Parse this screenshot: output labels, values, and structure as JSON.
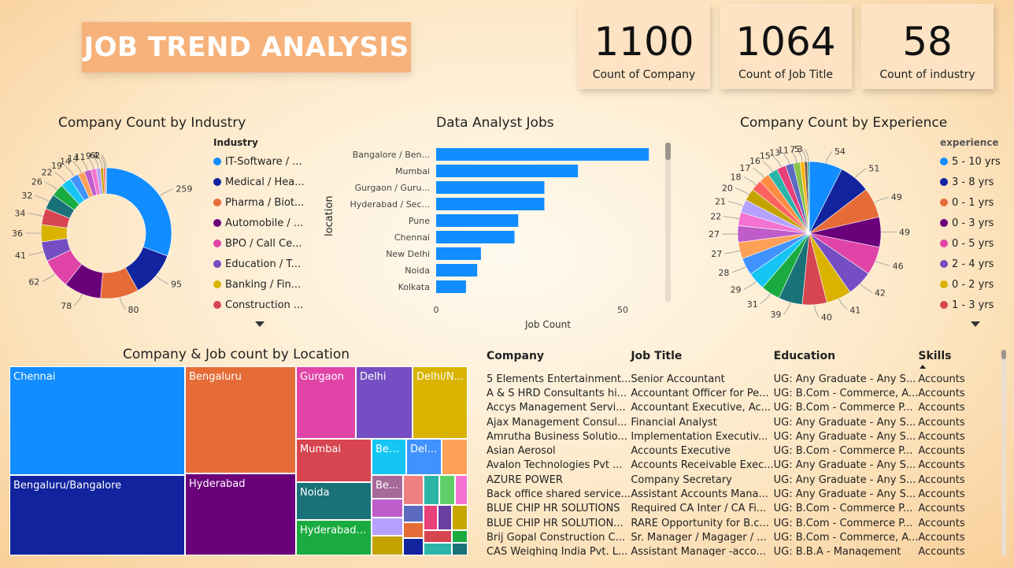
{
  "header": {
    "title": "JOB TREND ANALYSIS"
  },
  "kpis": [
    {
      "value": "1100",
      "label": "Count of Company"
    },
    {
      "value": "1064",
      "label": "Count of Job Title"
    },
    {
      "value": "58",
      "label": "Count of industry"
    }
  ],
  "industry_chart": {
    "title": "Company Count by Industry",
    "legend_title": "Industry",
    "legend": [
      {
        "label": "IT-Software / ...",
        "color": "#118DFF"
      },
      {
        "label": "Medical / Hea...",
        "color": "#12239E"
      },
      {
        "label": "Pharma / Biot...",
        "color": "#E66C37"
      },
      {
        "label": "Automobile / ...",
        "color": "#6B007B"
      },
      {
        "label": "BPO / Call Ce...",
        "color": "#E044A7"
      },
      {
        "label": "Education / T...",
        "color": "#744EC2"
      },
      {
        "label": "Banking / Fin...",
        "color": "#D9B300"
      },
      {
        "label": "Construction ...",
        "color": "#D64550"
      }
    ]
  },
  "analyst_chart": {
    "title": "Data Analyst Jobs",
    "ylabel": "location",
    "xlabel": "Job Count",
    "tick0": "0",
    "tick50": "50"
  },
  "experience_chart": {
    "title": "Company Count by Experience",
    "legend_title": "experience",
    "legend": [
      {
        "label": "5 - 10 yrs",
        "color": "#118DFF"
      },
      {
        "label": "3 - 8 yrs",
        "color": "#12239E"
      },
      {
        "label": "0 - 1 yrs",
        "color": "#E66C37"
      },
      {
        "label": "0 - 3 yrs",
        "color": "#6B007B"
      },
      {
        "label": "0 - 5 yrs",
        "color": "#E044A7"
      },
      {
        "label": "2 - 4 yrs",
        "color": "#744EC2"
      },
      {
        "label": "0 - 2 yrs",
        "color": "#D9B300"
      },
      {
        "label": "1 - 3 yrs",
        "color": "#D64550"
      }
    ]
  },
  "treemap": {
    "title": "Company & Job count by Location",
    "cells": [
      {
        "label": "Chennai",
        "color": "#118DFF"
      },
      {
        "label": "Bengaluru/Bangalore",
        "color": "#12239E"
      },
      {
        "label": "Bengaluru",
        "color": "#E66C37"
      },
      {
        "label": "Hyderabad",
        "color": "#6B007B"
      },
      {
        "label": "Gurgaon",
        "color": "#E044A7"
      },
      {
        "label": "Delhi",
        "color": "#744EC2"
      },
      {
        "label": "Delhi/N...",
        "color": "#D9B300"
      },
      {
        "label": "Mumbai",
        "color": "#D64550"
      },
      {
        "label": "Noida",
        "color": "#197278"
      },
      {
        "label": "Hyderabad /...",
        "color": "#1AAB40"
      },
      {
        "label": "Ben...",
        "color": "#15C6F4"
      },
      {
        "label": "Del...",
        "color": "#4092FF"
      },
      {
        "label": "Be...",
        "color": "#A66999"
      }
    ]
  },
  "table": {
    "headers": [
      "Company",
      "Job Title",
      "Education",
      "Skills"
    ],
    "rows": [
      [
        "5 Elements Entertainment...",
        "Senior Accountant",
        "UG: Any Graduate - Any S...",
        "Accounts"
      ],
      [
        "A & S HRD Consultants hi...",
        "Accountant Officer for Pe...",
        "UG: B.Com - Commerce, A...",
        "Accounts"
      ],
      [
        "Accys Management Servi...",
        "Accountant Executive, Ac...",
        "UG: B.Com - Commerce P...",
        "Accounts"
      ],
      [
        "Ajax Management Consul...",
        "Financial Analyst",
        "UG: Any Graduate - Any S...",
        "Accounts"
      ],
      [
        "Amrutha Business Solutio...",
        "Implementation Executiv...",
        "UG: Any Graduate - Any S...",
        "Accounts"
      ],
      [
        "Asian Aerosol",
        "Accounts Executive",
        "UG: B.Com - Commerce P...",
        "Accounts"
      ],
      [
        "Avalon Technologies Pvt ...",
        "Accounts Receivable Exec...",
        "UG: Any Graduate - Any S...",
        "Accounts"
      ],
      [
        "AZURE POWER",
        "Company Secretary",
        "UG: Any Graduate - Any S...",
        "Accounts"
      ],
      [
        "Back office shared service...",
        "Assistant Accounts Mana...",
        "UG: Any Graduate - Any S...",
        "Accounts"
      ],
      [
        "BLUE CHIP HR SOLUTIONS",
        "Required CA Inter / CA Fi...",
        "UG: B.Com - Commerce P...",
        "Accounts"
      ],
      [
        "BLUE CHIP HR SOLUTION...",
        "RARE Opportunity for B.c...",
        "UG: B.Com - Commerce P...",
        "Accounts"
      ],
      [
        "Brij Gopal Construction C...",
        "Sr. Manager / Magager / ...",
        "UG: B.Com - Commerce, A...",
        "Accounts"
      ],
      [
        "CAS Weighing India Pvt. L...",
        "Assistant Manager -acco...",
        "UG: B.B.A - Management",
        "Accounts"
      ]
    ]
  },
  "chart_data": [
    {
      "type": "pie",
      "title": "Company Count by Industry",
      "legend_title": "Industry",
      "values": [
        259,
        95,
        80,
        78,
        62,
        41,
        36,
        34,
        32,
        26,
        22,
        19,
        14,
        14,
        11,
        9,
        6,
        4,
        2
      ],
      "colors": [
        "#118DFF",
        "#12239E",
        "#E66C37",
        "#6B007B",
        "#E044A7",
        "#744EC2",
        "#D9B300",
        "#D64550",
        "#197278",
        "#1AAB40",
        "#15C6F4",
        "#4092FF",
        "#FFA058",
        "#BE5DC9",
        "#F472D0",
        "#B5A1FF",
        "#C4A200",
        "#FD625E",
        "#FF8C42"
      ],
      "donut": true
    },
    {
      "type": "bar",
      "orientation": "horizontal",
      "title": "Data Analyst Jobs",
      "categories": [
        "Bangalore / Ben...",
        "Mumbai",
        "Gurgaon / Guru...",
        "Hyderabad / Sec...",
        "Pune",
        "Chennai",
        "New Delhi",
        "Noida",
        "Kolkata"
      ],
      "values": [
        57,
        38,
        29,
        29,
        22,
        21,
        12,
        11,
        8
      ],
      "xlabel": "Job Count",
      "ylabel": "location",
      "xlim": [
        0,
        60
      ],
      "color": "#118DFF"
    },
    {
      "type": "pie",
      "title": "Company Count by Experience",
      "legend_title": "experience",
      "values": [
        54,
        51,
        49,
        49,
        46,
        42,
        41,
        40,
        39,
        31,
        29,
        28,
        27,
        27,
        22,
        21,
        20,
        18,
        17,
        16,
        15,
        13,
        11,
        7,
        5,
        3
      ],
      "colors": [
        "#118DFF",
        "#12239E",
        "#E66C37",
        "#6B007B",
        "#E044A7",
        "#744EC2",
        "#D9B300",
        "#D64550",
        "#197278",
        "#1AAB40",
        "#15C6F4",
        "#4092FF",
        "#FFA058",
        "#BE5DC9",
        "#F472D0",
        "#B5A1FF",
        "#C4A200",
        "#FD625E",
        "#FF8C42",
        "#2BB4A8",
        "#E8407A",
        "#5C6BC0",
        "#8BC34A",
        "#FFB300",
        "#795548",
        "#26A69A"
      ],
      "donut": false
    }
  ]
}
